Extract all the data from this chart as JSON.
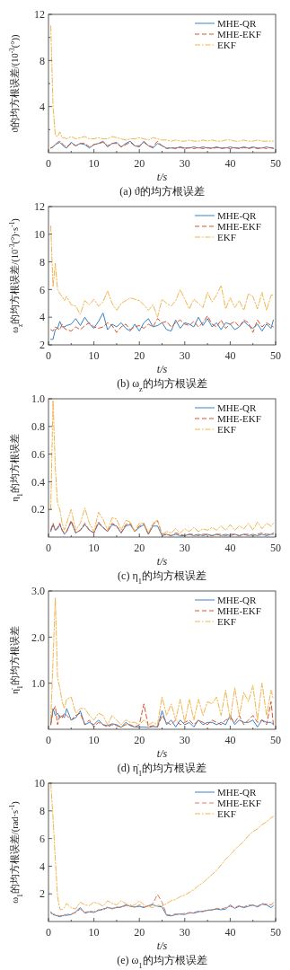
{
  "chart_data": [
    {
      "type": "line",
      "title": "(a) ϑ的均方根误差",
      "xlabel": "t/s",
      "ylabel": "ϑ的均方根误差/(10$^{-3}$(°))",
      "legend": "top right",
      "x": [
        0.5,
        1,
        1.5,
        2,
        2.5,
        3,
        3.5,
        4,
        5,
        6,
        7,
        8,
        9,
        10,
        11,
        12,
        13,
        14,
        15,
        16,
        17,
        18,
        19,
        20,
        21,
        22,
        23,
        24,
        25,
        26,
        27,
        28,
        29,
        30,
        31,
        32,
        33,
        34,
        35,
        36,
        37,
        38,
        39,
        40,
        41,
        42,
        43,
        44,
        45,
        46,
        47,
        48,
        49,
        49.5
      ],
      "xlim": [
        0,
        50
      ],
      "xticks": [
        0,
        {
          "value": 5,
          "label": null
        },
        10,
        {
          "value": 15,
          "label": null
        },
        20,
        {
          "value": 25,
          "label": null
        },
        30,
        {
          "value": 35,
          "label": null
        },
        40,
        {
          "value": 45,
          "label": null
        },
        50
      ],
      "ylim": [
        0,
        12
      ],
      "yticks": [
        {
          "value": 2,
          "label": null
        },
        4,
        {
          "value": 6,
          "label": null
        },
        8,
        {
          "value": 10,
          "label": null
        },
        12
      ],
      "series": [
        {
          "name": "MHE-QR",
          "color": "#3a82c4",
          "line_style": "solid",
          "values": [
            0.4,
            0.5,
            0.7,
            0.8,
            0.9,
            0.7,
            0.5,
            0.4,
            0.9,
            0.6,
            0.8,
            0.7,
            0.4,
            0.7,
            0.8,
            1.0,
            0.5,
            0.8,
            0.9,
            0.5,
            0.8,
            1.0,
            0.6,
            0.5,
            1.0,
            0.6,
            0.4,
            0.8,
            0.6,
            0.4,
            0.4,
            0.4,
            0.5,
            0.4,
            0.4,
            0.5,
            0.4,
            0.5,
            0.4,
            0.4,
            0.5,
            0.4,
            0.4,
            0.5,
            0.4,
            0.4,
            0.5,
            0.4,
            0.5,
            0.4,
            0.4,
            0.5,
            0.4,
            0.4
          ]
        },
        {
          "name": "MHE-EKF",
          "color": "#d9542a",
          "line_style": "dashed",
          "values": [
            0.4,
            0.5,
            0.7,
            0.9,
            1.0,
            0.8,
            0.6,
            0.5,
            0.8,
            0.6,
            0.8,
            0.8,
            0.5,
            0.7,
            0.8,
            0.9,
            0.6,
            0.8,
            0.8,
            0.5,
            0.7,
            0.9,
            0.6,
            0.6,
            0.9,
            0.6,
            0.5,
            1.0,
            0.6,
            0.35,
            0.45,
            0.35,
            0.45,
            0.35,
            0.45,
            0.35,
            0.45,
            0.35,
            0.45,
            0.35,
            0.45,
            0.35,
            0.45,
            0.35,
            0.45,
            0.35,
            0.45,
            0.35,
            0.45,
            0.35,
            0.45,
            0.35,
            0.45,
            0.35
          ]
        },
        {
          "name": "EKF",
          "color": "#f2b54c",
          "line_style": "dashdot",
          "values": [
            11,
            4,
            1.5,
            1.4,
            1.8,
            1.3,
            1.3,
            1.2,
            1.4,
            1.2,
            1.3,
            1.4,
            1.2,
            1.2,
            1.3,
            1.2,
            1.2,
            1.4,
            1.3,
            1.2,
            1.1,
            1.2,
            1.2,
            1.3,
            1.2,
            1.1,
            1.3,
            1.2,
            1.1,
            1.1,
            1.0,
            1.1,
            1.0,
            1.0,
            1.1,
            1.0,
            1.0,
            1.1,
            1.0,
            1.1,
            1.0,
            1.0,
            1.1,
            1.1,
            1.0,
            1.0,
            1.1,
            1.0,
            1.0,
            1.1,
            1.0,
            1.0,
            1.0,
            1.0
          ]
        }
      ]
    },
    {
      "type": "line",
      "title": "(b) ω$_{z}$的均方根误差",
      "xlabel": "t/s",
      "ylabel": "ω$_{z}$的均方根误差/(10$^{-3}$(°)·s$^{-1}$)",
      "legend": "top right",
      "x": [
        0.5,
        1,
        1.5,
        2,
        2.5,
        3,
        3.5,
        4,
        5,
        6,
        7,
        8,
        9,
        10,
        11,
        12,
        13,
        14,
        15,
        16,
        17,
        18,
        19,
        20,
        21,
        22,
        23,
        24,
        25,
        26,
        27,
        28,
        29,
        30,
        31,
        32,
        33,
        34,
        35,
        36,
        37,
        38,
        39,
        40,
        41,
        42,
        43,
        44,
        45,
        46,
        47,
        48,
        49,
        49.5
      ],
      "xlim": [
        0,
        50
      ],
      "xticks": [
        0,
        {
          "value": 5,
          "label": null
        },
        10,
        {
          "value": 15,
          "label": null
        },
        20,
        {
          "value": 25,
          "label": null
        },
        30,
        {
          "value": 35,
          "label": null
        },
        40,
        {
          "value": 45,
          "label": null
        },
        50
      ],
      "ylim": [
        2,
        12
      ],
      "yticks": [
        2,
        4,
        6,
        8,
        10,
        12
      ],
      "series": [
        {
          "name": "MHE-QR",
          "color": "#3a82c4",
          "line_style": "solid",
          "values": [
            2.4,
            2.4,
            3.1,
            3.2,
            3.7,
            3.3,
            3.3,
            3.4,
            3.5,
            3.9,
            3.4,
            4.0,
            3.5,
            3.2,
            3.7,
            4.3,
            3.1,
            3.5,
            3.3,
            3.6,
            3.2,
            3.0,
            3.5,
            3.0,
            3.6,
            3.9,
            3.3,
            3.4,
            3.6,
            3.1,
            3.0,
            3.8,
            3.2,
            3.6,
            3.5,
            3.3,
            4.0,
            3.4,
            3.9,
            3.3,
            3.6,
            3.1,
            3.6,
            3.5,
            3.1,
            3.3,
            3.7,
            3.4,
            3.2,
            3.5,
            3.0,
            3.5,
            3.2,
            3.8
          ]
        },
        {
          "name": "MHE-EKF",
          "color": "#d9542a",
          "line_style": "dashed",
          "values": [
            3.1,
            3.0,
            3.3,
            3.2,
            3.1,
            3.5,
            3.2,
            3.1,
            3.0,
            3.3,
            3.1,
            3.4,
            3.6,
            3.3,
            3.2,
            3.3,
            3.6,
            3.4,
            2.9,
            3.3,
            3.5,
            3.1,
            3.3,
            3.4,
            3.2,
            3.5,
            3.3,
            3.9,
            3.6,
            3.7,
            3.3,
            3.6,
            3.8,
            3.5,
            3.4,
            3.7,
            3.3,
            3.6,
            4.1,
            3.5,
            3.3,
            3.8,
            3.2,
            3.5,
            3.7,
            3.3,
            3.8,
            3.6,
            2.9,
            3.8,
            3.3,
            3.6,
            3.4,
            3.3
          ]
        },
        {
          "name": "EKF",
          "color": "#f2b54c",
          "line_style": "dashdot",
          "values": [
            10.6,
            6.2,
            7.9,
            6.0,
            5.7,
            5.5,
            5.2,
            5.5,
            4.9,
            4.8,
            4.2,
            5.2,
            4.9,
            5.3,
            4.8,
            5.1,
            5.9,
            5.0,
            4.5,
            5.0,
            5.2,
            5.4,
            5.3,
            5.2,
            4.9,
            4.5,
            4.9,
            4.0,
            5.3,
            5.0,
            4.8,
            5.2,
            6.0,
            5.3,
            4.6,
            5.3,
            5.0,
            4.7,
            5.8,
            5.1,
            5.6,
            6.3,
            4.6,
            5.4,
            4.7,
            5.2,
            4.5,
            5.7,
            5.5,
            4.6,
            5.8,
            4.5,
            5.6,
            5.6
          ]
        }
      ]
    },
    {
      "type": "line",
      "title": "(c) η$_{1}$的均方根误差",
      "xlabel": "t/s",
      "ylabel": "η$_{1}$的均方根误差",
      "legend": "top right",
      "x": [
        0.5,
        1,
        1.5,
        2,
        2.5,
        3,
        3.5,
        4,
        5,
        6,
        7,
        8,
        9,
        10,
        11,
        12,
        13,
        14,
        15,
        16,
        17,
        18,
        19,
        20,
        21,
        22,
        23,
        24,
        25,
        26,
        27,
        28,
        29,
        30,
        31,
        32,
        33,
        34,
        35,
        36,
        37,
        38,
        39,
        40,
        41,
        42,
        43,
        44,
        45,
        46,
        47,
        48,
        49,
        49.5
      ],
      "xlim": [
        0,
        50
      ],
      "xticks": [
        0,
        {
          "value": 5,
          "label": null
        },
        10,
        {
          "value": 15,
          "label": null
        },
        20,
        {
          "value": 25,
          "label": null
        },
        30,
        {
          "value": 35,
          "label": null
        },
        40,
        {
          "value": 45,
          "label": null
        },
        50
      ],
      "ylim": [
        0,
        1
      ],
      "yticks": [
        0.2,
        0.4,
        0.6,
        0.8,
        {
          "value": 1,
          "label": "1.0"
        }
      ],
      "series": [
        {
          "name": "MHE-QR",
          "color": "#3a82c4",
          "line_style": "solid",
          "values": [
            0.04,
            0.09,
            0.05,
            0.06,
            0.09,
            0.05,
            0.02,
            0.04,
            0.11,
            0.03,
            0.05,
            0.09,
            0.05,
            0.03,
            0.1,
            0.07,
            0.04,
            0.09,
            0.08,
            0.03,
            0.08,
            0.09,
            0.04,
            0.07,
            0.09,
            0.02,
            0.08,
            0.08,
            0.01,
            0.02,
            0.01,
            0.02,
            0.01,
            0.01,
            0.02,
            0.01,
            0.02,
            0.01,
            0.02,
            0.01,
            0.02,
            0.01,
            0.02,
            0.01,
            0.02,
            0.01,
            0.02,
            0.01,
            0.02,
            0.01,
            0.02,
            0.01,
            0.02,
            0.02
          ]
        },
        {
          "name": "MHE-EKF",
          "color": "#d9542a",
          "line_style": "dashed",
          "values": [
            0.05,
            0.1,
            0.05,
            0.07,
            0.1,
            0.05,
            0.03,
            0.04,
            0.12,
            0.03,
            0.05,
            0.1,
            0.05,
            0.03,
            0.11,
            0.07,
            0.04,
            0.1,
            0.08,
            0.03,
            0.09,
            0.1,
            0.04,
            0.08,
            0.1,
            0.02,
            0.09,
            0.12,
            0.02,
            0.02,
            0.01,
            0.03,
            0.02,
            0.01,
            0.02,
            0.02,
            0.01,
            0.02,
            0.02,
            0.01,
            0.02,
            0.02,
            0.01,
            0.02,
            0.02,
            0.01,
            0.02,
            0.02,
            0.01,
            0.02,
            0.03,
            0.02,
            0.02,
            0.03
          ]
        },
        {
          "name": "EKF",
          "color": "#f2b54c",
          "line_style": "dashdot",
          "values": [
            0.2,
            0.99,
            0.5,
            0.24,
            0.2,
            0.1,
            0.05,
            0.1,
            0.2,
            0.05,
            0.1,
            0.21,
            0.1,
            0.04,
            0.18,
            0.13,
            0.05,
            0.14,
            0.13,
            0.05,
            0.12,
            0.11,
            0.04,
            0.1,
            0.1,
            0.03,
            0.1,
            0.12,
            0.02,
            0.04,
            0.03,
            0.06,
            0.03,
            0.06,
            0.04,
            0.07,
            0.04,
            0.06,
            0.05,
            0.07,
            0.05,
            0.08,
            0.05,
            0.09,
            0.05,
            0.08,
            0.06,
            0.1,
            0.05,
            0.11,
            0.06,
            0.1,
            0.08,
            0.1
          ]
        }
      ]
    },
    {
      "type": "line",
      "title": "(d) η̇$_{1}$的均方根误差",
      "xlabel": "t/s",
      "ylabel": "η̇$_{1}$的均方根误差",
      "legend": "top right",
      "x": [
        0.5,
        1,
        1.5,
        2,
        2.5,
        3,
        3.5,
        4,
        5,
        6,
        7,
        8,
        9,
        10,
        11,
        12,
        13,
        14,
        15,
        16,
        17,
        18,
        19,
        20,
        21,
        22,
        23,
        24,
        25,
        26,
        27,
        28,
        29,
        30,
        31,
        32,
        33,
        34,
        35,
        36,
        37,
        38,
        39,
        40,
        41,
        42,
        43,
        44,
        45,
        46,
        47,
        48,
        49,
        49.5
      ],
      "xlim": [
        0,
        50
      ],
      "xticks": [
        0,
        {
          "value": 5,
          "label": null
        },
        10,
        {
          "value": 15,
          "label": null
        },
        20,
        {
          "value": 25,
          "label": null
        },
        30,
        {
          "value": 35,
          "label": null
        },
        40,
        {
          "value": 45,
          "label": null
        },
        50
      ],
      "ylim": [
        0,
        3
      ],
      "yticks": [
        {
          "value": 1,
          "label": "1.0"
        },
        {
          "value": 2,
          "label": "2.0"
        },
        {
          "value": 3,
          "label": "3.0"
        }
      ],
      "series": [
        {
          "name": "MHE-QR",
          "color": "#3a82c4",
          "line_style": "solid",
          "values": [
            0.1,
            0.45,
            0.3,
            0.35,
            0.25,
            0.3,
            0.25,
            0.45,
            0.2,
            0.25,
            0.4,
            0.1,
            0.15,
            0.1,
            0.2,
            0.1,
            0.08,
            0.12,
            0.1,
            0.04,
            0.15,
            0.08,
            0.05,
            0.05,
            0.05,
            0.04,
            0.06,
            0.05,
            0.4,
            0.1,
            0.2,
            0.05,
            0.2,
            0.1,
            0.15,
            0.05,
            0.2,
            0.1,
            0.15,
            0.15,
            0.1,
            0.15,
            0.1,
            0.3,
            0.1,
            0.2,
            0.15,
            0.15,
            0.2,
            0.05,
            0.2,
            0.15,
            0.15,
            0.1
          ]
        },
        {
          "name": "MHE-EKF",
          "color": "#d9542a",
          "line_style": "dashed",
          "values": [
            0.1,
            0.4,
            0.5,
            0.1,
            0.3,
            0.25,
            0.35,
            0.3,
            0.2,
            0.3,
            0.35,
            0.1,
            0.2,
            0.05,
            0.15,
            0.1,
            0.05,
            0.1,
            0.08,
            0.05,
            0.1,
            0.1,
            0.05,
            0.1,
            0.55,
            0.05,
            0.08,
            0.05,
            0.3,
            0.15,
            0.1,
            0.2,
            0.1,
            0.15,
            0.2,
            0.1,
            0.2,
            0.15,
            0.1,
            0.2,
            0.15,
            0.1,
            0.2,
            0.25,
            0.15,
            0.3,
            0.1,
            0.2,
            0.3,
            0.15,
            0.2,
            0.1,
            0.6,
            0.1
          ]
        },
        {
          "name": "EKF",
          "color": "#f2b54c",
          "line_style": "dashdot",
          "values": [
            0.2,
            1.5,
            2.85,
            1.1,
            0.9,
            0.6,
            0.45,
            0.65,
            0.7,
            0.35,
            0.45,
            0.45,
            0.3,
            0.2,
            0.35,
            0.3,
            0.1,
            0.3,
            0.2,
            0.1,
            0.2,
            0.15,
            0.15,
            0.1,
            0.2,
            0.1,
            0.15,
            0.1,
            0.7,
            0.3,
            0.55,
            0.2,
            0.65,
            0.15,
            0.65,
            0.2,
            0.65,
            0.3,
            0.6,
            0.55,
            0.7,
            0.3,
            0.85,
            0.2,
            0.9,
            0.3,
            0.8,
            0.6,
            0.95,
            0.2,
            1.0,
            0.3,
            0.85,
            0.65
          ]
        }
      ]
    },
    {
      "type": "line",
      "title": "(e) ω$_{1}$的均方根误差",
      "xlabel": "t/s",
      "ylabel": "ω$_{1}$的均方根误差/(rad·s$^{-1}$)",
      "legend": "top right",
      "x": [
        0.5,
        1,
        1.5,
        2,
        2.5,
        3,
        3.5,
        4,
        5,
        6,
        7,
        8,
        9,
        10,
        11,
        12,
        13,
        14,
        15,
        16,
        17,
        18,
        19,
        20,
        21,
        22,
        23,
        24,
        25,
        26,
        27,
        28,
        29,
        30,
        31,
        32,
        33,
        34,
        35,
        36,
        37,
        38,
        39,
        40,
        41,
        42,
        43,
        44,
        45,
        46,
        47,
        48,
        49,
        49.5
      ],
      "xlim": [
        0,
        50
      ],
      "xticks": [
        0,
        {
          "value": 5,
          "label": null
        },
        10,
        {
          "value": 15,
          "label": null
        },
        20,
        {
          "value": 25,
          "label": null
        },
        30,
        {
          "value": 35,
          "label": null
        },
        40,
        {
          "value": 45,
          "label": null
        },
        50
      ],
      "ylim": [
        0,
        10
      ],
      "yticks": [
        2,
        4,
        6,
        8,
        10
      ],
      "series": [
        {
          "name": "MHE-QR",
          "color": "#3a82c4",
          "line_style": "solid",
          "values": [
            0.7,
            0.5,
            0.45,
            0.4,
            0.35,
            0.4,
            0.45,
            0.45,
            0.5,
            0.7,
            1.0,
            0.6,
            0.7,
            0.65,
            0.8,
            0.9,
            1.0,
            0.95,
            1.0,
            1.05,
            1.2,
            1.1,
            1.05,
            1.1,
            1.0,
            1.15,
            1.2,
            1.1,
            1.05,
            0.45,
            0.4,
            0.5,
            0.55,
            0.5,
            0.65,
            0.6,
            0.7,
            0.75,
            0.8,
            0.85,
            0.9,
            0.85,
            0.9,
            1.2,
            0.95,
            1.1,
            1.0,
            1.1,
            1.2,
            1.05,
            1.25,
            1.2,
            1.0,
            1.15
          ]
        },
        {
          "name": "MHE-EKF",
          "color": "#e07a5c",
          "line_style": "dashed",
          "values": [
            0.6,
            0.55,
            0.5,
            0.45,
            0.4,
            0.45,
            0.5,
            0.5,
            0.55,
            0.65,
            0.9,
            0.65,
            0.75,
            0.7,
            0.85,
            0.8,
            1.05,
            0.9,
            1.05,
            1.0,
            1.15,
            1.2,
            1.0,
            1.2,
            1.05,
            1.1,
            1.3,
            1.95,
            1.4,
            0.5,
            0.45,
            0.55,
            0.5,
            0.6,
            0.6,
            0.65,
            0.75,
            0.7,
            0.85,
            0.8,
            0.95,
            0.9,
            1.0,
            1.1,
            1.0,
            1.15,
            1.05,
            1.2,
            1.15,
            1.1,
            1.3,
            1.25,
            1.2,
            1.35
          ]
        },
        {
          "name": "EKF",
          "color": "#f2b54c",
          "line_style": "dashdot",
          "values": [
            10,
            7.5,
            4.5,
            1.8,
            0.9,
            0.85,
            1.0,
            1.3,
            1.0,
            0.9,
            1.4,
            1.2,
            1.15,
            1.4,
            1.3,
            1.1,
            1.5,
            1.3,
            1.2,
            1.5,
            1.3,
            1.1,
            1.2,
            1.5,
            1.2,
            1.1,
            1.0,
            1.2,
            1.1,
            1.3,
            1.5,
            1.6,
            1.8,
            1.9,
            2.1,
            2.3,
            2.6,
            2.8,
            3.1,
            3.4,
            3.7,
            4.1,
            4.5,
            4.8,
            5.2,
            5.5,
            5.8,
            6.2,
            6.5,
            6.7,
            7.0,
            7.2,
            7.5,
            7.6
          ]
        }
      ]
    }
  ]
}
